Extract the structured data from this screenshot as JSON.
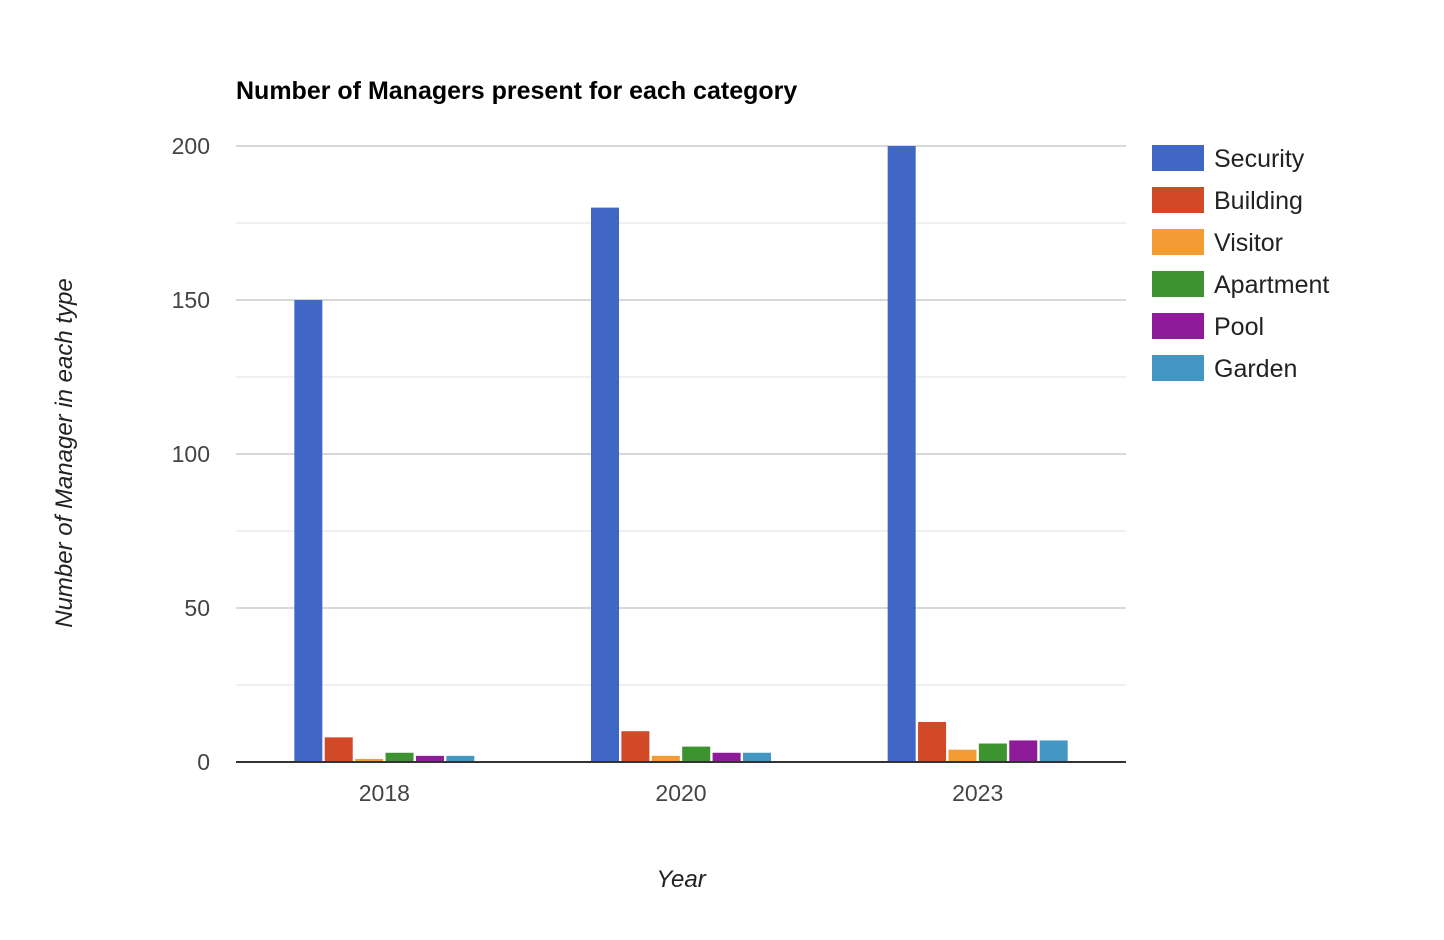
{
  "chart_data": {
    "type": "bar",
    "title": "Number of Managers present for each category",
    "xlabel": "Year",
    "ylabel": "Number of Manager in each type",
    "categories": [
      "2018",
      "2020",
      "2023"
    ],
    "ylim": [
      0,
      200
    ],
    "yticks": [
      0,
      50,
      100,
      150,
      200
    ],
    "grid": true,
    "legend_position": "right",
    "series": [
      {
        "name": "Security",
        "color": "#4066c6",
        "values": [
          150,
          180,
          200
        ]
      },
      {
        "name": "Building",
        "color": "#d14927",
        "values": [
          8,
          10,
          13
        ]
      },
      {
        "name": "Visitor",
        "color": "#f39c34",
        "values": [
          1,
          2,
          4
        ]
      },
      {
        "name": "Apartment",
        "color": "#3d9330",
        "values": [
          3,
          5,
          6
        ]
      },
      {
        "name": "Pool",
        "color": "#8e1b99",
        "values": [
          2,
          3,
          7
        ]
      },
      {
        "name": "Garden",
        "color": "#4397c4",
        "values": [
          2,
          3,
          7
        ]
      }
    ]
  }
}
